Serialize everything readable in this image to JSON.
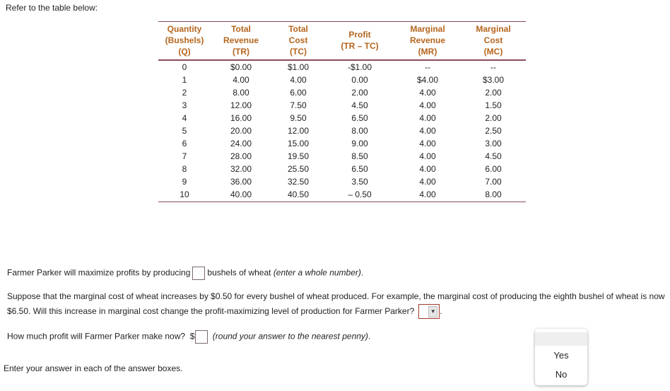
{
  "intro": "Refer to the table below:",
  "table": {
    "headers": [
      {
        "l1": "Quantity",
        "l2": "(Bushels)",
        "l3": "(Q)"
      },
      {
        "l1": "Total",
        "l2": "Revenue",
        "l3": "(TR)"
      },
      {
        "l1": "Total",
        "l2": "Cost",
        "l3": "(TC)"
      },
      {
        "l1": "",
        "l2": "Profit",
        "l3": "(TR – TC)"
      },
      {
        "l1": "Marginal",
        "l2": "Revenue",
        "l3": "(MR)"
      },
      {
        "l1": "Marginal",
        "l2": "Cost",
        "l3": "(MC)"
      }
    ],
    "rows": [
      [
        "0",
        "$0.00",
        "$1.00",
        "-$1.00",
        "--",
        "--"
      ],
      [
        "1",
        "4.00",
        "4.00",
        "0.00",
        "$4.00",
        "$3.00"
      ],
      [
        "2",
        "8.00",
        "6.00",
        "2.00",
        "4.00",
        "2.00"
      ],
      [
        "3",
        "12.00",
        "7.50",
        "4.50",
        "4.00",
        "1.50"
      ],
      [
        "4",
        "16.00",
        "9.50",
        "6.50",
        "4.00",
        "2.00"
      ],
      [
        "5",
        "20.00",
        "12.00",
        "8.00",
        "4.00",
        "2.50"
      ],
      [
        "6",
        "24.00",
        "15.00",
        "9.00",
        "4.00",
        "3.00"
      ],
      [
        "7",
        "28.00",
        "19.50",
        "8.50",
        "4.00",
        "4.50"
      ],
      [
        "8",
        "32.00",
        "25.50",
        "6.50",
        "4.00",
        "6.00"
      ],
      [
        "9",
        "36.00",
        "32.50",
        "3.50",
        "4.00",
        "7.00"
      ],
      [
        "10",
        "40.00",
        "40.50",
        "– 0.50",
        "4.00",
        "8.00"
      ]
    ]
  },
  "q1": {
    "before": "Farmer Parker will maximize profits by producing",
    "after": "bushels of wheat",
    "hint": "(enter a whole number)",
    "end": ".",
    "value": ""
  },
  "q2": {
    "text": "Suppose that the marginal cost of wheat increases by $0.50 for every bushel of wheat produced.  For example, the marginal cost of producing the eighth bushel of wheat is now $6.50.  Will this increase in marginal cost change the profit-maximizing level of production for Farmer Parker?",
    "end": ".",
    "selected": "",
    "arrow": "▼",
    "options": [
      "",
      "Yes",
      "No"
    ]
  },
  "q3": {
    "before": "How much profit will Farmer Parker make now?",
    "currency": "$",
    "hint": "(round your answer to the nearest penny)",
    "end": ".",
    "value": ""
  },
  "footer": "Enter your answer in each of the answer boxes."
}
